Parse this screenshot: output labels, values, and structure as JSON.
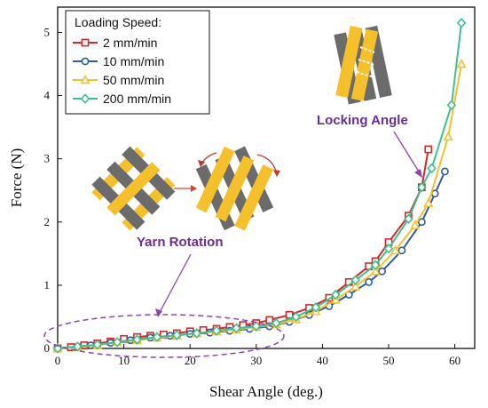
{
  "chart_data": {
    "type": "line",
    "xlabel": "Shear Angle (deg.)",
    "ylabel": "Force (N)",
    "xlim": [
      0,
      63
    ],
    "ylim": [
      0,
      5.4
    ],
    "xticks": [
      0,
      10,
      20,
      30,
      40,
      50,
      60
    ],
    "yticks": [
      0,
      1,
      2,
      3,
      4,
      5
    ],
    "legend": {
      "title": "Loading Speed:",
      "placement": "top-left"
    },
    "series": [
      {
        "name": "2    mm/min",
        "color": "#d62728",
        "marker": "square",
        "x": [
          0,
          2,
          4,
          6,
          8,
          10,
          12,
          14,
          16,
          18,
          20,
          22,
          24,
          26,
          28,
          30,
          32,
          35,
          38,
          41,
          44,
          47,
          48,
          50,
          53,
          55,
          56
        ],
        "y": [
          0,
          0.02,
          0.05,
          0.08,
          0.11,
          0.15,
          0.18,
          0.2,
          0.22,
          0.24,
          0.27,
          0.29,
          0.31,
          0.34,
          0.37,
          0.4,
          0.45,
          0.53,
          0.64,
          0.8,
          1.05,
          1.3,
          1.38,
          1.68,
          2.1,
          2.55,
          3.15
        ]
      },
      {
        "name": "10   mm/min",
        "color": "#2e5c9e",
        "marker": "circle",
        "x": [
          0,
          3,
          5,
          8,
          11,
          14,
          17,
          20,
          23,
          26,
          29,
          32,
          35,
          38,
          41,
          44,
          47,
          49,
          52,
          55,
          57,
          58.5
        ],
        "y": [
          0,
          0.03,
          0.05,
          0.09,
          0.13,
          0.17,
          0.2,
          0.23,
          0.25,
          0.28,
          0.31,
          0.35,
          0.42,
          0.53,
          0.67,
          0.85,
          1.05,
          1.22,
          1.55,
          2.0,
          2.45,
          2.8
        ]
      },
      {
        "name": "50   mm/min",
        "color": "#f5c02c",
        "marker": "triangle",
        "x": [
          0,
          3,
          6,
          9,
          12,
          15,
          18,
          21,
          24,
          27,
          30,
          33,
          36,
          39,
          42,
          45,
          48,
          51,
          54,
          56,
          59,
          61
        ],
        "y": [
          0,
          0.02,
          0.05,
          0.1,
          0.13,
          0.17,
          0.2,
          0.24,
          0.27,
          0.3,
          0.34,
          0.38,
          0.46,
          0.59,
          0.77,
          0.98,
          1.22,
          1.55,
          1.95,
          2.3,
          3.35,
          4.5
        ]
      },
      {
        "name": "200 mm/min",
        "color": "#3fbf8f",
        "marker": "diamond",
        "x": [
          0,
          3,
          6,
          9,
          12,
          15,
          18,
          21,
          24,
          27,
          30,
          33,
          36,
          39,
          42,
          45,
          48,
          50,
          53,
          55,
          56.5,
          59.5,
          61
        ],
        "y": [
          0,
          0.03,
          0.06,
          0.1,
          0.14,
          0.18,
          0.21,
          0.24,
          0.28,
          0.32,
          0.35,
          0.4,
          0.5,
          0.65,
          0.85,
          1.08,
          1.32,
          1.58,
          2.05,
          2.55,
          2.85,
          3.85,
          5.15
        ]
      }
    ],
    "annotations": [
      {
        "text": "Yarn Rotation"
      },
      {
        "text": "Locking Angle"
      }
    ]
  }
}
